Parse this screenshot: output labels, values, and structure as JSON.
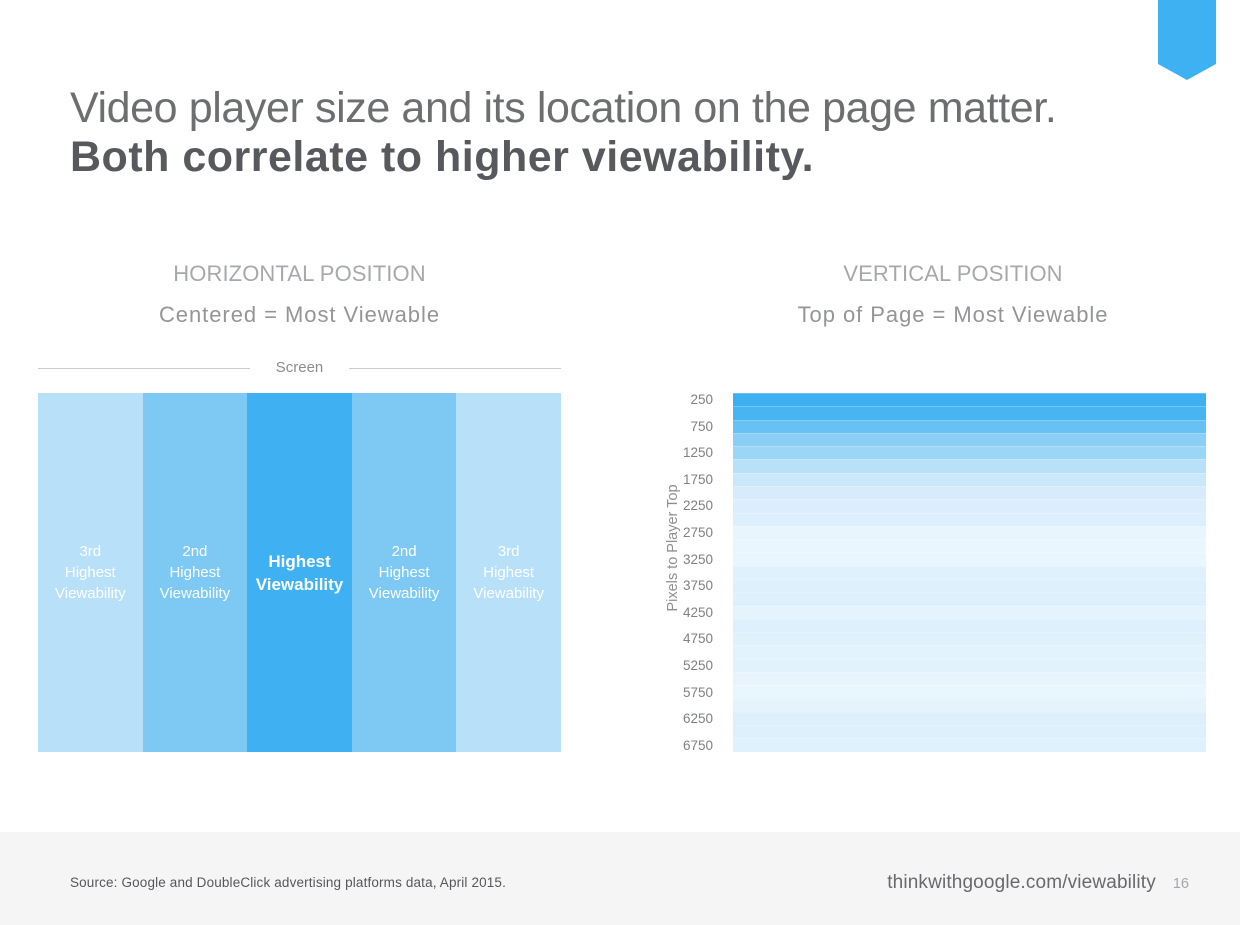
{
  "slide": {
    "title_line1": "Video player size and its location on the page matter.",
    "title_line2": "Both correlate to higher viewability.",
    "accent_color": "#3eb1f3",
    "ribbon_icon": "bookmark-ribbon"
  },
  "footer": {
    "source": "Source: Google and DoubleClick advertising platforms data, April 2015.",
    "site": "thinkwithgoogle.com/viewability",
    "page_number": "16"
  },
  "chart_data": [
    {
      "type": "bar",
      "title": "HORIZONTAL POSITION",
      "subtitle": "Centered = Most Viewable",
      "screen_label": "Screen",
      "note": "five equal-width screen regions; color saturation encodes viewability rank (darker = more viewable)",
      "categories": [
        "far left",
        "center left",
        "center",
        "center right",
        "far right"
      ],
      "bars": [
        {
          "label": "3rd\nHighest\nViewability",
          "rank": 3,
          "color": "#b8e0f9",
          "emphasis": false
        },
        {
          "label": "2nd\nHighest\nViewability",
          "rank": 2,
          "color": "#7dc9f3",
          "emphasis": false
        },
        {
          "label": "Highest\nViewability",
          "rank": 1,
          "color": "#3fb1f3",
          "emphasis": true
        },
        {
          "label": "2nd\nHighest\nViewability",
          "rank": 2,
          "color": "#7dc9f3",
          "emphasis": false
        },
        {
          "label": "3rd\nHighest\nViewability",
          "rank": 3,
          "color": "#b8e0f9",
          "emphasis": false
        }
      ]
    },
    {
      "type": "heatmap",
      "title": "VERTICAL POSITION",
      "subtitle": "Top of Page = Most Viewable",
      "ylabel": "Pixels to Player Top",
      "note": "horizontal bands per 250px of page depth; darker = more viewable",
      "rows": [
        {
          "pixels": 250,
          "label": "250",
          "color": "#3db0f2"
        },
        {
          "pixels": 500,
          "label": "",
          "color": "#49b4f2"
        },
        {
          "pixels": 750,
          "label": "750",
          "color": "#66c1f4"
        },
        {
          "pixels": 1000,
          "label": "",
          "color": "#8ccff6"
        },
        {
          "pixels": 1250,
          "label": "1250",
          "color": "#9cd6f7"
        },
        {
          "pixels": 1500,
          "label": "",
          "color": "#b8e1f9"
        },
        {
          "pixels": 1750,
          "label": "1750",
          "color": "#cbe8fa"
        },
        {
          "pixels": 2000,
          "label": "",
          "color": "#d6ecfb"
        },
        {
          "pixels": 2250,
          "label": "2250",
          "color": "#daeefb"
        },
        {
          "pixels": 2500,
          "label": "",
          "color": "#dbeffc"
        },
        {
          "pixels": 2750,
          "label": "2750",
          "color": "#e8f5fd"
        },
        {
          "pixels": 3000,
          "label": "",
          "color": "#eaf6fd"
        },
        {
          "pixels": 3250,
          "label": "3250",
          "color": "#eaf6fd"
        },
        {
          "pixels": 3500,
          "label": "",
          "color": "#dff1fc"
        },
        {
          "pixels": 3750,
          "label": "3750",
          "color": "#ddf0fc"
        },
        {
          "pixels": 4000,
          "label": "",
          "color": "#def0fc"
        },
        {
          "pixels": 4250,
          "label": "4250",
          "color": "#e5f3fd"
        },
        {
          "pixels": 4500,
          "label": "",
          "color": "#def0fc"
        },
        {
          "pixels": 4750,
          "label": "4750",
          "color": "#e0f1fc"
        },
        {
          "pixels": 5000,
          "label": "",
          "color": "#e3f2fd"
        },
        {
          "pixels": 5250,
          "label": "5250",
          "color": "#e2f2fc"
        },
        {
          "pixels": 5500,
          "label": "",
          "color": "#e7f4fd"
        },
        {
          "pixels": 5750,
          "label": "5750",
          "color": "#eaf6fd"
        },
        {
          "pixels": 6000,
          "label": "",
          "color": "#e5f3fd"
        },
        {
          "pixels": 6250,
          "label": "6250",
          "color": "#dceffb"
        },
        {
          "pixels": 6500,
          "label": "",
          "color": "#ddf0fc"
        },
        {
          "pixels": 6750,
          "label": "6750",
          "color": "#dff1fc"
        }
      ]
    }
  ]
}
